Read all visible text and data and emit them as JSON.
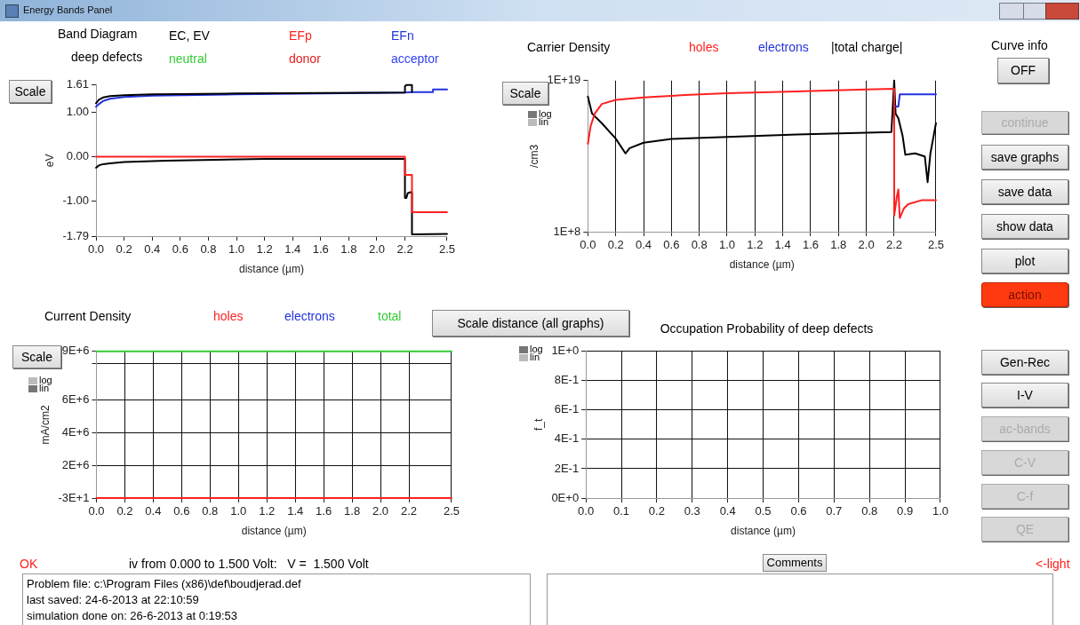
{
  "chart_data": [
    {
      "type": "line",
      "title": "Band Diagram",
      "legend_title": "deep defects",
      "xlabel": "distance (µm)",
      "ylabel": "eV",
      "legend": "top",
      "grid": false,
      "marker": "none",
      "line_style": "solid",
      "xlim": [
        0,
        2.5
      ],
      "xticks": [
        {
          "value": 0,
          "label": "0.0"
        },
        0.2,
        0.4,
        0.6,
        0.8,
        {
          "value": 1,
          "label": "1.0"
        },
        1.2,
        1.4,
        1.6,
        1.8,
        {
          "value": 2,
          "label": "2.0"
        },
        2.2,
        2.5
      ],
      "ylim": [
        -1.79,
        1.61
      ],
      "yticks": [
        1.61,
        {
          "value": 1,
          "label": "1.00"
        },
        {
          "value": 0,
          "label": "0.00"
        },
        {
          "value": -1,
          "label": "-1.00"
        },
        -1.79
      ],
      "series": [
        {
          "name": "EC, EV",
          "color": "#000000",
          "x": [
            0,
            0.02,
            0.05,
            0.1,
            0.2,
            0.4,
            1.0,
            1.6,
            2.2,
            2.2,
            2.21,
            2.25,
            2.25
          ],
          "values": [
            1.2,
            1.28,
            1.33,
            1.36,
            1.38,
            1.4,
            1.42,
            1.43,
            1.44,
            1.58,
            1.61,
            1.61,
            1.45
          ]
        },
        {
          "name": "EFp",
          "color": "#ff2020",
          "x": [
            0,
            2.2,
            2.2,
            2.25,
            2.25,
            2.5
          ],
          "values": [
            0,
            0,
            -0.41,
            -0.41,
            -1.25,
            -1.25
          ]
        },
        {
          "name": "EFn",
          "color": "#2233dd",
          "x": [
            0,
            0.02,
            0.05,
            0.1,
            0.2,
            0.4,
            1.0,
            1.6,
            2.2,
            2.25,
            2.4,
            2.4,
            2.5
          ],
          "values": [
            1.12,
            1.18,
            1.25,
            1.3,
            1.34,
            1.37,
            1.4,
            1.42,
            1.44,
            1.45,
            1.45,
            1.51,
            1.51
          ]
        },
        {
          "name": "neutral",
          "color": "#33cc33"
        },
        {
          "name": "donor",
          "color": "#e02020"
        },
        {
          "name": "acceptor",
          "color": "#3344ee"
        },
        {
          "color": "#000000",
          "x": [
            0,
            0.02,
            0.05,
            0.1,
            0.2,
            0.5,
            1.2,
            2.2,
            2.2,
            2.21,
            2.22,
            2.24,
            2.25,
            2.25,
            2.5
          ],
          "values": [
            -0.25,
            -0.2,
            -0.17,
            -0.15,
            -0.12,
            -0.09,
            -0.05,
            -0.05,
            -0.93,
            -0.93,
            -0.82,
            -0.8,
            -0.8,
            -1.75,
            -1.74
          ]
        }
      ]
    },
    {
      "type": "line",
      "title": "Carrier Density",
      "xlabel": "distance (µm)",
      "ylabel": "/cm3",
      "legend": "top",
      "grid": "x",
      "log": "y",
      "marker": "none",
      "line_style": "solid",
      "xlim": [
        0,
        2.5
      ],
      "xticks": [
        {
          "value": 0,
          "label": "0.0"
        },
        0.2,
        0.4,
        0.6,
        0.8,
        {
          "value": 1,
          "label": "1.0"
        },
        1.2,
        1.4,
        1.6,
        1.8,
        {
          "value": 2,
          "label": "2.0"
        },
        2.2,
        2.5
      ],
      "ylim": [
        100000000.0,
        1e+19
      ],
      "yticks": [
        {
          "value": 1e+19,
          "label": "1E+19"
        },
        {
          "value": 100000000.0,
          "label": "1E+8"
        }
      ],
      "series": [
        {
          "name": "holes",
          "color": "#ff2020",
          "x": [
            0,
            0.02,
            0.05,
            0.1,
            0.2,
            0.4,
            0.7,
            1.0,
            1.5,
            2.0,
            2.2,
            2.2,
            2.22,
            2.23,
            2.24,
            2.27,
            2.3,
            2.4,
            2.5
          ],
          "values": [
            250000000000000.0,
            5000000000000000.0,
            4e+16,
            2e+17,
            4e+17,
            6e+17,
            9e+17,
            1.2e+18,
            1.6e+18,
            2.3e+18,
            2.5e+18,
            1500000000.0,
            40000000000.0,
            120000000000.0,
            1000000000.0,
            5000000000.0,
            10000000000.0,
            20000000000.0,
            20000000000.0
          ]
        },
        {
          "name": "electrons",
          "color": "#2233dd",
          "x": [
            2.21,
            2.23,
            2.24,
            2.5
          ],
          "values": [
            1.3e+17,
            1.3e+17,
            1e+18,
            1e+18
          ]
        },
        {
          "name": "|total charge|",
          "color": "#000000",
          "x": [
            0,
            0.03,
            0.1,
            0.2,
            0.27,
            0.3,
            0.4,
            0.6,
            1.0,
            1.5,
            2.18,
            2.2,
            2.21,
            2.23,
            2.26,
            2.28,
            2.35,
            2.42,
            2.44,
            2.46,
            2.5
          ],
          "values": [
            7e+17,
            4e+16,
            8000000000000000.0,
            600000000000000.0,
            50000000000000.0,
            120000000000000.0,
            300000000000000.0,
            560000000000000.0,
            800000000000000.0,
            1200000000000000.0,
            1800000000000000.0,
            1e+19,
            4e+16,
            1.8e+16,
            1000000000000000.0,
            40000000000000.0,
            50000000000000.0,
            30000000000000.0,
            400000000000.0,
            50000000000000.0,
            8000000000000000.0
          ]
        }
      ]
    },
    {
      "type": "line",
      "title": "Current Density",
      "xlabel": "distance (µm)",
      "ylabel": "mA/cm2",
      "legend": "top",
      "grid": true,
      "marker": "none",
      "line_style": "solid",
      "xlim": [
        0,
        2.5
      ],
      "xticks": [
        {
          "value": 0,
          "label": "0.0"
        },
        0.2,
        0.4,
        0.6,
        0.8,
        {
          "value": 1,
          "label": "1.0"
        },
        1.2,
        1.4,
        1.6,
        1.8,
        {
          "value": 2,
          "label": "2.0"
        },
        2.2,
        2.5
      ],
      "ylim": [
        -30,
        9000000
      ],
      "yticks": [
        {
          "value": -30,
          "label": "-3E+1"
        },
        {
          "value": 2000000,
          "label": "2E+6"
        },
        {
          "value": 4000000,
          "label": "4E+6"
        },
        {
          "value": 6000000,
          "label": "6E+6"
        },
        {
          "value": 8250000,
          "label": null
        },
        {
          "value": 9000000,
          "label": "9E+6"
        }
      ],
      "series": [
        {
          "name": "holes",
          "color": "#ff2020",
          "x": [
            0,
            2.5
          ],
          "values": [
            -30,
            -30
          ]
        },
        {
          "name": "electrons",
          "color": "#2233dd"
        },
        {
          "name": "total",
          "color": "#33cc33",
          "x": [
            0,
            2.5
          ],
          "values": [
            9000000,
            9000000
          ]
        }
      ]
    },
    {
      "type": "line",
      "title": "Occupation Probability of deep defects",
      "xlabel": "distance (µm)",
      "ylabel": "f_t",
      "grid": true,
      "marker": "none",
      "xlim": [
        0,
        1
      ],
      "xticks": [
        {
          "value": 0,
          "label": "0.0"
        },
        0.1,
        0.2,
        0.3,
        0.4,
        0.5,
        0.6,
        0.7,
        0.8,
        0.9,
        {
          "value": 1,
          "label": "1.0"
        }
      ],
      "ylim": [
        0,
        1
      ],
      "yticks": [
        {
          "value": 0,
          "label": "0E+0"
        },
        {
          "value": 0.2,
          "label": "2E-1"
        },
        {
          "value": 0.4,
          "label": "4E-1"
        },
        {
          "value": 0.6,
          "label": "6E-1"
        },
        {
          "value": 0.8,
          "label": "8E-1"
        },
        {
          "value": 1,
          "label": "1E+0"
        }
      ]
    },
    {
      "type": "other",
      "title": "Energy Bands Panel",
      "annotations": [
        "Scale",
        "Scale",
        "log",
        "lin",
        "Scale",
        "log",
        "lin",
        "Scale distance (all graphs)",
        "log",
        "lin",
        "Curve info",
        "OFF",
        "continue",
        "save graphs",
        "save data",
        "show data",
        "plot",
        "action",
        "Gen-Rec",
        "I-V",
        "ac-bands",
        "C-V",
        "C-f",
        "QE",
        "OK",
        "iv from 0.000 to 1.500 Volt:   V =  1.500 Volt",
        "Comments",
        "<-light",
        "Problem file: c:\\Program Files (x86)\\def\\boudjerad.def",
        "last saved: 24-6-2013 at 22:10:59",
        "simulation done on: 26-6-2013 at 0:19:53"
      ]
    }
  ]
}
